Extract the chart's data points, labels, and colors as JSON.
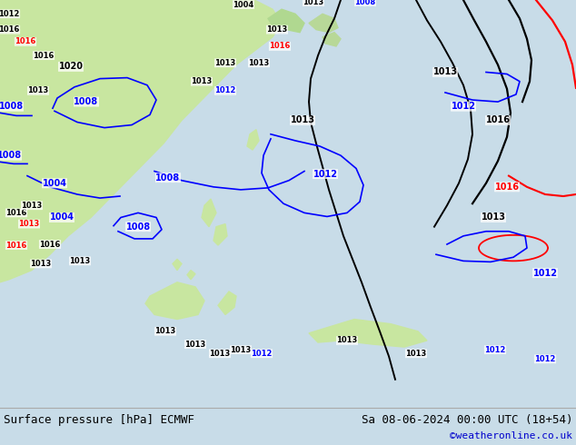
{
  "title_left": "Surface pressure [hPa] ECMWF",
  "title_right": "Sa 08-06-2024 00:00 UTC (18+54)",
  "watermark": "©weatheronline.co.uk",
  "watermark_color": "#0000cc",
  "bg_color": "#c8dce8",
  "land_color_main": "#c8e6a0",
  "text_color": "#000000",
  "title_font_size": 9,
  "watermark_font_size": 8,
  "fig_width": 6.34,
  "fig_height": 4.9,
  "dpi": 100,
  "bottom_bar_color": "#f0f0f0",
  "isobar_black_color": "#000000",
  "isobar_blue_color": "#0000ff",
  "isobar_red_color": "#ff0000"
}
